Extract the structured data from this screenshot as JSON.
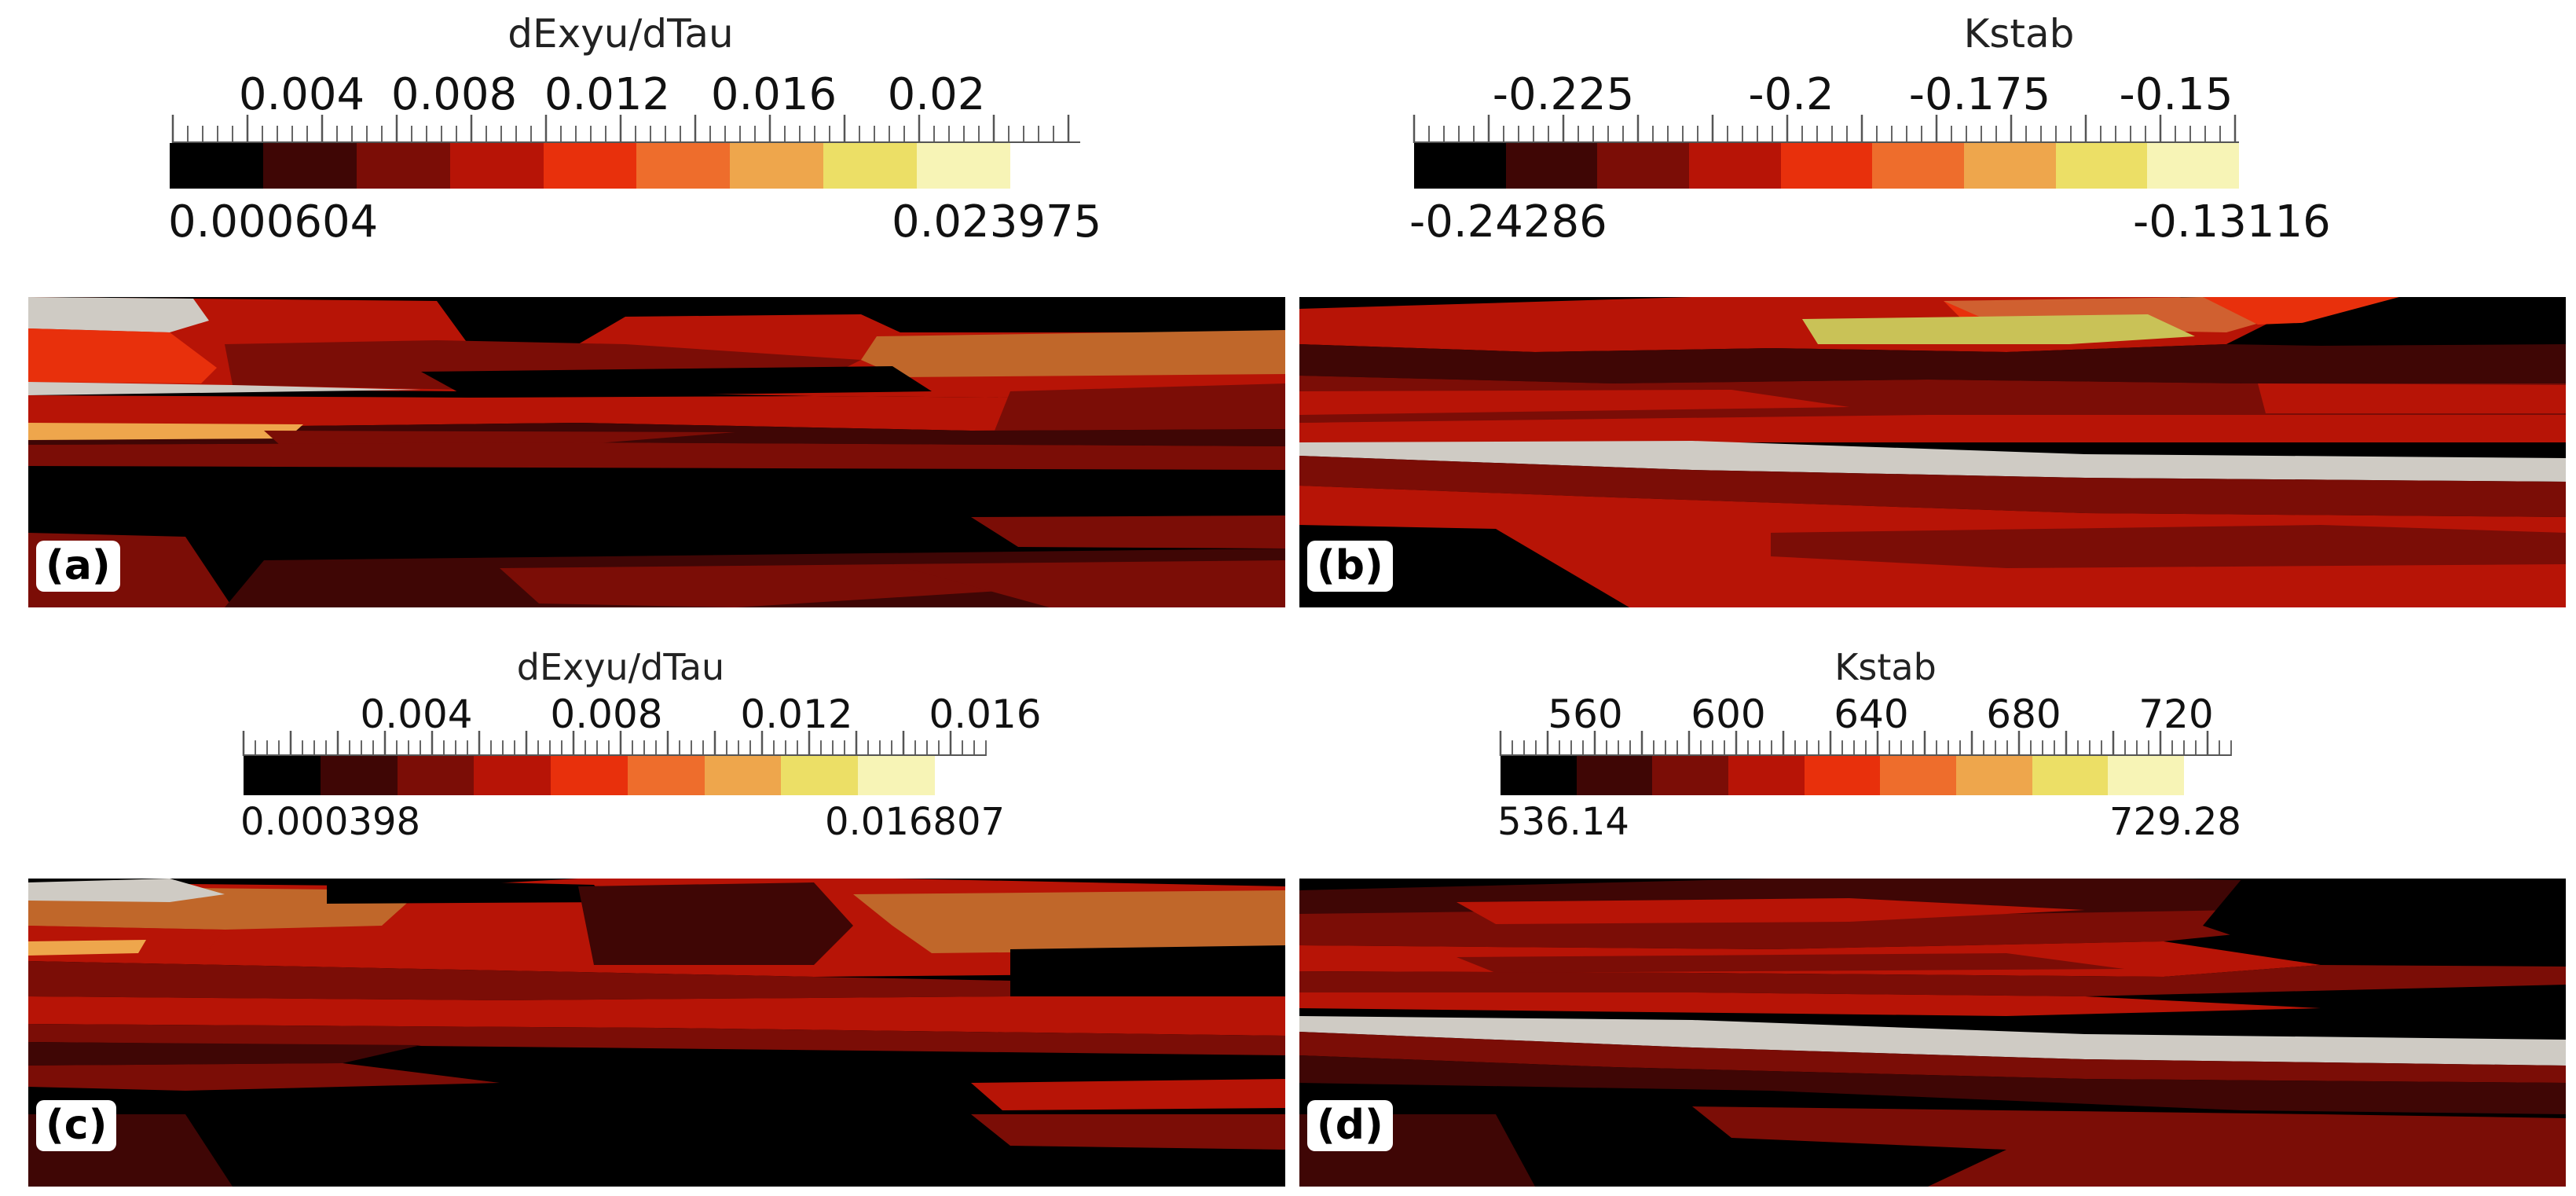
{
  "colors": {
    "palette": [
      "#000000",
      "#3f0605",
      "#7b0d06",
      "#b71406",
      "#e8300c",
      "#ee6d2c",
      "#eea64c",
      "#ecdf66",
      "#f7f4b6"
    ],
    "nan": "#cfcbc4"
  },
  "panels": [
    {
      "label": "(a)",
      "colorbar": {
        "title": "dExyu/dTau",
        "ticks": [
          "0.004",
          "0.008",
          "0.012",
          "0.016",
          "0.02"
        ],
        "min_label": "0.000604",
        "max_label": "0.023975",
        "min": 0.000604,
        "max": 0.023975,
        "tick_values": [
          0.004,
          0.008,
          0.012,
          0.016,
          0.02
        ]
      }
    },
    {
      "label": "(b)",
      "colorbar": {
        "title": "Kstab",
        "ticks": [
          "-0.225",
          "-0.2",
          "-0.175",
          "-0.15"
        ],
        "min_label": "-0.24286",
        "max_label": "-0.13116",
        "min": -0.24286,
        "max": -0.13116,
        "tick_values": [
          -0.225,
          -0.2,
          -0.175,
          -0.15
        ]
      }
    },
    {
      "label": "(c)",
      "colorbar": {
        "title": "dExyu/dTau",
        "ticks": [
          "0.004",
          "0.008",
          "0.012",
          "0.016"
        ],
        "min_label": "0.000398",
        "max_label": "0.016807",
        "min": 0.000398,
        "max": 0.016807,
        "tick_values": [
          0.004,
          0.008,
          0.012,
          0.016
        ]
      }
    },
    {
      "label": "(d)",
      "colorbar": {
        "title": "Kstab",
        "ticks": [
          "560",
          "600",
          "640",
          "680",
          "720"
        ],
        "min_label": "536.14",
        "max_label": "729.28",
        "min": 536.14,
        "max": 729.28,
        "tick_values": [
          560,
          600,
          640,
          680,
          720
        ]
      }
    }
  ]
}
